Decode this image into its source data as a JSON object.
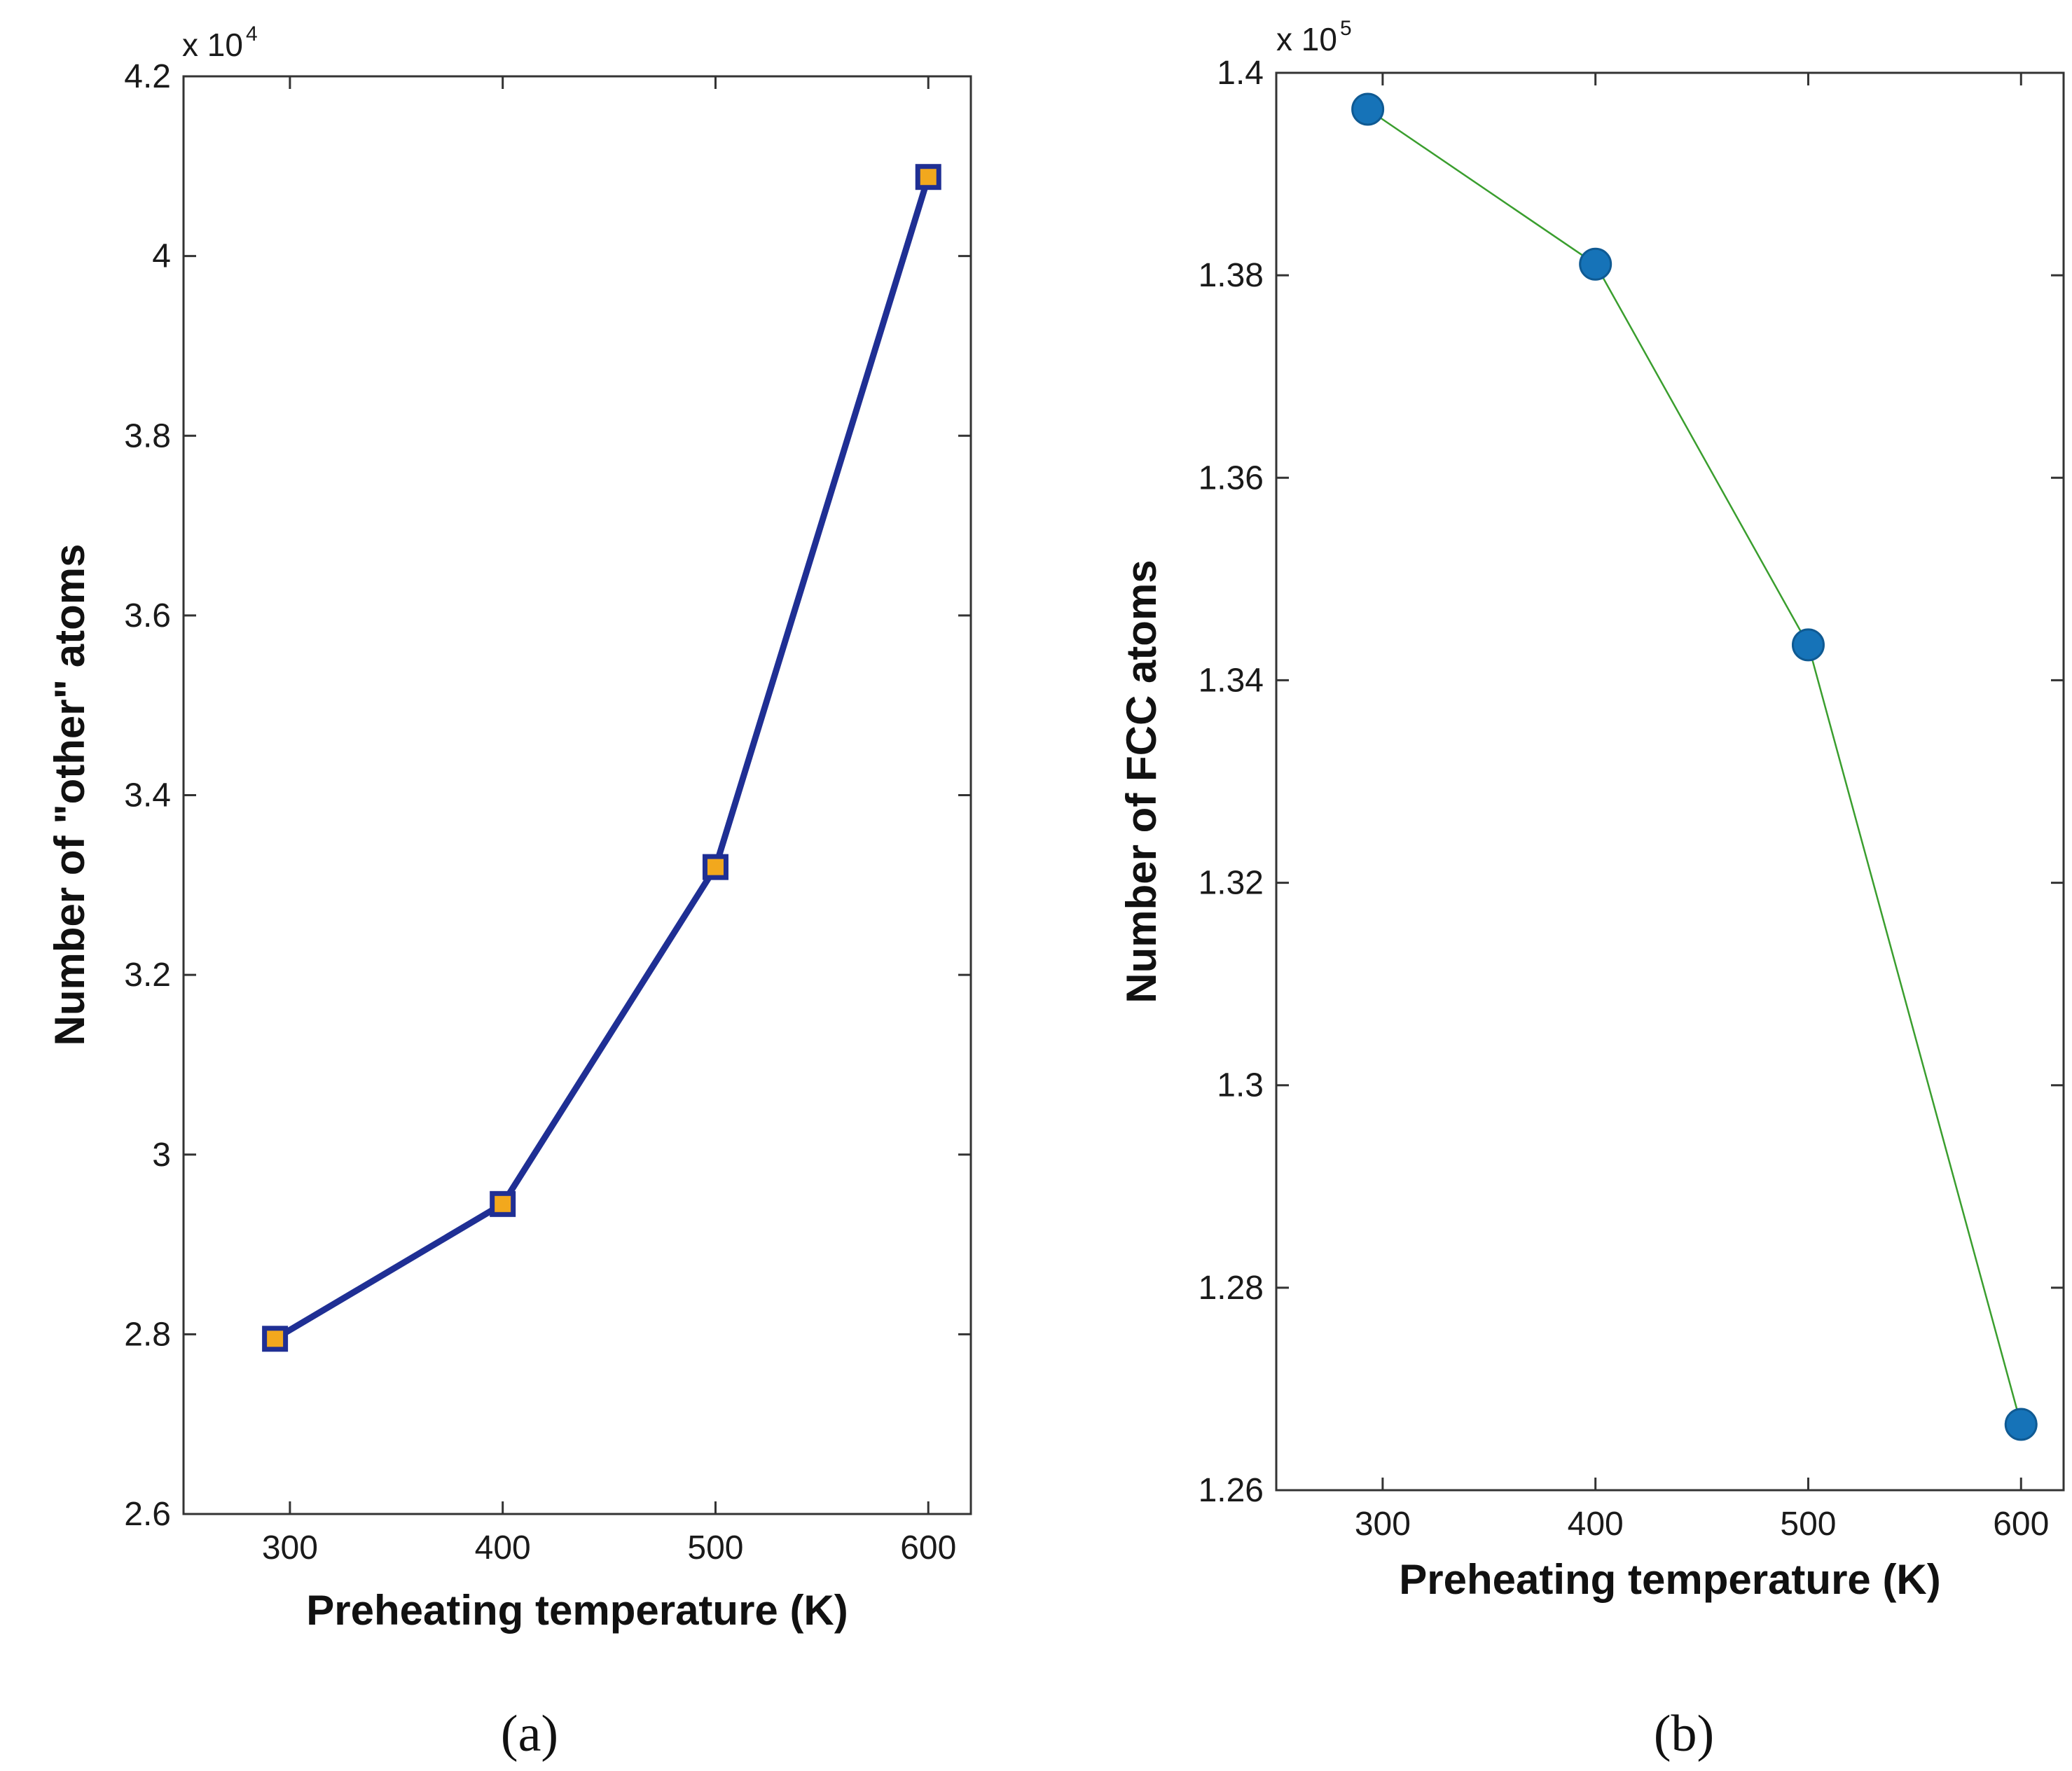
{
  "chart_data": [
    {
      "type": "line",
      "panel_label": "(a)",
      "multiplier_base": "x 10",
      "multiplier_exponent": "4",
      "x": [
        293,
        400,
        500,
        600
      ],
      "values": [
        27950,
        29450,
        33200,
        40880
      ],
      "xlim": [
        250,
        620
      ],
      "ylim": [
        26000,
        42000
      ],
      "xticks": [
        300,
        400,
        500,
        600
      ],
      "xtick_labels": [
        "300",
        "400",
        "500",
        "600"
      ],
      "yticks": [
        26000,
        28000,
        30000,
        32000,
        34000,
        36000,
        38000,
        40000,
        42000
      ],
      "ytick_labels": [
        "2.6",
        "2.8",
        "3",
        "3.2",
        "3.4",
        "3.6",
        "3.8",
        "4",
        "4.2"
      ],
      "xlabel": "Preheating temperature (K)",
      "ylabel": "Number of \"other\" atoms",
      "line_color": "#1f2f94",
      "marker": "square",
      "marker_fill": "#f2a81d",
      "marker_edge": "#1f2f94"
    },
    {
      "type": "line",
      "panel_label": "(b)",
      "multiplier_base": "x 10",
      "multiplier_exponent": "5",
      "x": [
        293,
        400,
        500,
        600
      ],
      "values": [
        139640,
        138110,
        134350,
        126650
      ],
      "xlim": [
        250,
        620
      ],
      "ylim": [
        126000,
        140000
      ],
      "xticks": [
        300,
        400,
        500,
        600
      ],
      "xtick_labels": [
        "300",
        "400",
        "500",
        "600"
      ],
      "yticks": [
        126000,
        128000,
        130000,
        132000,
        134000,
        136000,
        138000,
        140000
      ],
      "ytick_labels": [
        "1.26",
        "1.28",
        "1.3",
        "1.32",
        "1.34",
        "1.36",
        "1.38",
        "1.4"
      ],
      "xlabel": "Preheating temperature (K)",
      "ylabel": "Number of FCC atoms",
      "line_color": "#3a9e2e",
      "marker": "circle",
      "marker_fill": "#1673b8",
      "marker_edge": "#0f5a93"
    }
  ]
}
